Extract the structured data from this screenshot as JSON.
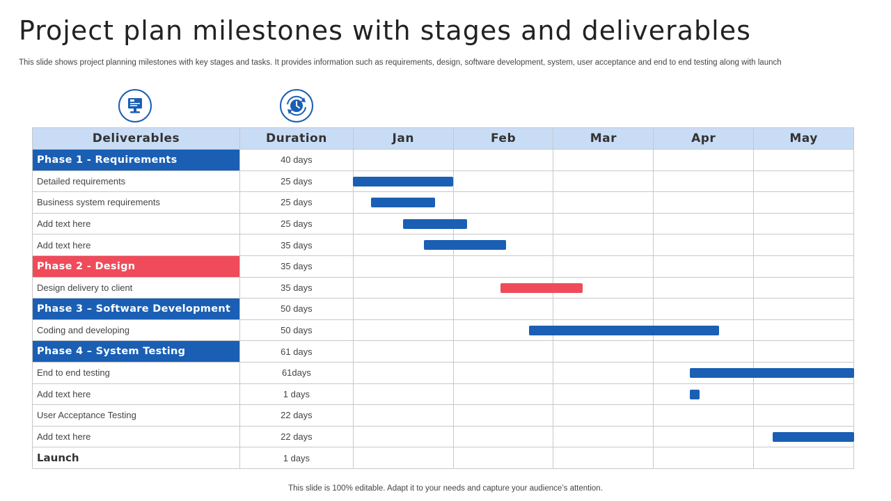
{
  "title": "Project plan milestones with stages and deliverables",
  "subtitle": "This slide shows project planning milestones with key stages and tasks. It provides information such as requirements, design, software development, system, user acceptance and end to end testing along with launch",
  "footer": "This slide is 100% editable. Adapt it to your needs and capture your audience’s attention.",
  "icons": [
    "computer-monitor-icon",
    "clock-cycle-icon"
  ],
  "colors": {
    "blue": "#1a5fb4",
    "red": "#ef4b5a",
    "header": "#c9dcf5"
  },
  "columns": {
    "deliverables": "Deliverables",
    "duration": "Duration",
    "months": [
      "Jan",
      "Feb",
      "Mar",
      "Apr",
      "May"
    ]
  },
  "rows": [
    {
      "name": "Phase 1 - Requirements",
      "duration": "40 days",
      "type": "phase",
      "color": "blue",
      "start": null,
      "end": null
    },
    {
      "name": "Detailed requirements",
      "duration": "25 days",
      "type": "task",
      "color": "blue",
      "start": 0.0,
      "end": 1.0
    },
    {
      "name": "Business system requirements",
      "duration": "25 days",
      "type": "task",
      "color": "blue",
      "start": 0.18,
      "end": 0.82
    },
    {
      "name": "Add text here",
      "duration": "25 days",
      "type": "task",
      "color": "blue",
      "start": 0.5,
      "end": 1.14
    },
    {
      "name": "Add text here",
      "duration": "35 days",
      "type": "task",
      "color": "blue",
      "start": 0.71,
      "end": 1.53
    },
    {
      "name": "Phase 2 - Design",
      "duration": "35 days",
      "type": "phase",
      "color": "red",
      "start": null,
      "end": null
    },
    {
      "name": "Design delivery  to client",
      "duration": "35 days",
      "type": "task",
      "color": "red",
      "start": 1.47,
      "end": 2.29
    },
    {
      "name": "Phase 3 – Software Development",
      "duration": "50 days",
      "type": "phase",
      "color": "blue",
      "start": null,
      "end": null
    },
    {
      "name": "Coding  and developing",
      "duration": "50 days",
      "type": "task",
      "color": "blue",
      "start": 1.76,
      "end": 3.65
    },
    {
      "name": "Phase 4 – System Testing",
      "duration": "61 days",
      "type": "phase",
      "color": "blue",
      "start": null,
      "end": null
    },
    {
      "name": "End to end testing",
      "duration": "61days",
      "type": "task",
      "color": "blue",
      "start": 3.36,
      "end": 5.0
    },
    {
      "name": "Add text here",
      "duration": "1 days",
      "type": "task",
      "color": "blue",
      "start": 3.36,
      "end": 3.46
    },
    {
      "name": "User Acceptance Testing",
      "duration": "22 days",
      "type": "task",
      "color": "blue",
      "start": null,
      "end": null
    },
    {
      "name": "Add text here",
      "duration": "22 days",
      "type": "task",
      "color": "blue",
      "start": 4.19,
      "end": 5.0
    },
    {
      "name": "Launch",
      "duration": "1 days",
      "type": "launch",
      "color": "blue",
      "start": null,
      "end": null
    }
  ]
}
